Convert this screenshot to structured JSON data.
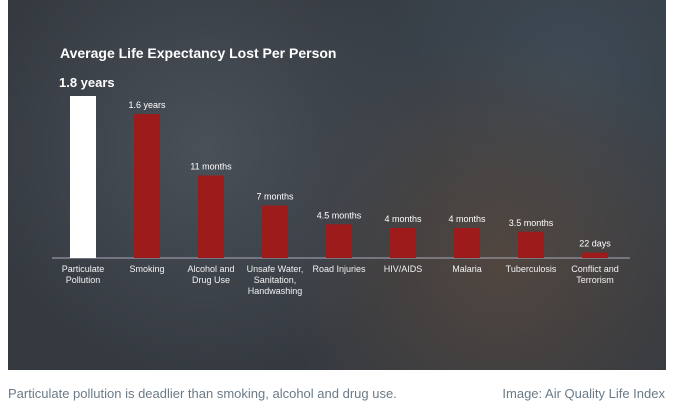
{
  "chart_data": {
    "type": "bar",
    "title": "Average Life Expectancy Lost Per Person",
    "categories": [
      "Particulate Pollution",
      "Smoking",
      "Alcohol and Drug Use",
      "Unsafe Water, Sanitation, Handwashing",
      "Road Injuries",
      "HIV/AIDS",
      "Malaria",
      "Tuberculosis",
      "Conflict and Terrorism"
    ],
    "values": [
      21.6,
      19.2,
      11,
      7,
      4.5,
      4,
      4,
      3.5,
      0.72
    ],
    "value_labels": [
      "1.8 years",
      "1.6 years",
      "11 months",
      "7 months",
      "4.5 months",
      "4 months",
      "4 months",
      "3.5 months",
      "22 days"
    ],
    "colors": [
      "#ffffff",
      "#9e1b1b",
      "#9e1b1b",
      "#9e1b1b",
      "#9e1b1b",
      "#9e1b1b",
      "#9e1b1b",
      "#9e1b1b",
      "#9e1b1b"
    ]
  },
  "caption": {
    "text": "Particulate pollution is deadlier than smoking, alcohol and drug use.",
    "credit": "Image: Air Quality Life Index"
  }
}
